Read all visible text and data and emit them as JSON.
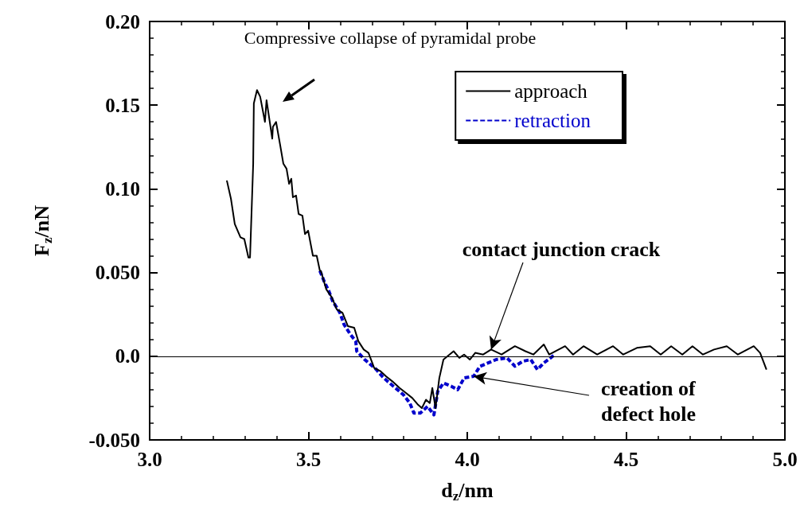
{
  "chart_data": {
    "type": "line",
    "xlabel": "d$_{z}$/nm",
    "ylabel": "F$_{z}$/nN",
    "xlim": [
      3.0,
      5.0
    ],
    "xticks": [
      {
        "value": 3.0,
        "label": "3.0"
      },
      {
        "value": 3.5,
        "label": "3.5"
      },
      {
        "value": 4.0,
        "label": "4.0"
      },
      {
        "value": 4.5,
        "label": "4.5"
      },
      {
        "value": 5.0,
        "label": "5.0"
      }
    ],
    "ylim": [
      -0.05,
      0.2
    ],
    "yticks": [
      {
        "value": -0.05,
        "label": "-0.050"
      },
      {
        "value": 0,
        "label": "0.0"
      },
      {
        "value": 0.05,
        "label": "0.050"
      },
      {
        "value": 0.1,
        "label": "0.10"
      },
      {
        "value": 0.15,
        "label": "0.15"
      },
      {
        "value": 0.2,
        "label": "0.20"
      }
    ],
    "grid": false,
    "legend": "top right",
    "marker": "none",
    "ref_lines": [
      {
        "axis": "y",
        "value": 0,
        "color": "#000000"
      }
    ],
    "annotations": [
      "Compressive collapse of pyramidal probe",
      {
        "text": "contact junction crack",
        "x": 4.075,
        "y": 0.004
      },
      {
        "text": "creation of\ndefect hole",
        "x": 4.02,
        "y": -0.012
      }
    ],
    "series": [
      {
        "name": "approach",
        "color": "#000000",
        "line_style": "solid",
        "x": [
          3.243,
          3.256,
          3.268,
          3.286,
          3.298,
          3.311,
          3.316,
          3.326,
          3.328,
          3.338,
          3.348,
          3.363,
          3.368,
          3.386,
          3.388,
          3.398,
          3.411,
          3.421,
          3.431,
          3.439,
          3.446,
          3.451,
          3.461,
          3.469,
          3.481,
          3.489,
          3.499,
          3.514,
          3.526,
          3.536,
          3.539,
          3.556,
          3.574,
          3.589,
          3.607,
          3.624,
          3.644,
          3.657,
          3.674,
          3.689,
          3.707,
          3.727,
          3.744,
          3.764,
          3.787,
          3.807,
          3.827,
          3.845,
          3.857,
          3.87,
          3.882,
          3.89,
          3.9,
          3.912,
          3.925,
          3.957,
          3.975,
          3.99,
          4.008,
          4.025,
          4.05,
          4.075,
          4.108,
          4.15,
          4.183,
          4.208,
          4.241,
          4.258,
          4.308,
          4.333,
          4.366,
          4.409,
          4.459,
          4.491,
          4.534,
          4.576,
          4.609,
          4.642,
          4.677,
          4.709,
          4.742,
          4.777,
          4.817,
          4.852,
          4.902,
          4.922,
          4.942
        ],
        "values": [
          0.105,
          0.094,
          0.079,
          0.071,
          0.07,
          0.059,
          0.059,
          0.115,
          0.151,
          0.159,
          0.155,
          0.14,
          0.153,
          0.13,
          0.137,
          0.14,
          0.126,
          0.115,
          0.112,
          0.103,
          0.106,
          0.095,
          0.096,
          0.085,
          0.084,
          0.073,
          0.075,
          0.06,
          0.06,
          0.051,
          0.051,
          0.04,
          0.035,
          0.028,
          0.026,
          0.018,
          0.017,
          0.009,
          0.004,
          0.002,
          -0.007,
          -0.009,
          -0.012,
          -0.015,
          -0.019,
          -0.022,
          -0.025,
          -0.029,
          -0.031,
          -0.026,
          -0.028,
          -0.019,
          -0.031,
          -0.013,
          -0.002,
          0.003,
          -0.001,
          0.001,
          -0.002,
          0.002,
          0.001,
          0.004,
          0.001,
          0.006,
          0.003,
          0.001,
          0.007,
          0.001,
          0.006,
          0.001,
          0.006,
          0.001,
          0.006,
          0.001,
          0.005,
          0.006,
          0.001,
          0.006,
          0.001,
          0.006,
          0.001,
          0.004,
          0.006,
          0.001,
          0.006,
          0.002,
          -0.008
        ]
      },
      {
        "name": "retraction",
        "color": "#0000cc",
        "line_style": "dashed",
        "x": [
          3.536,
          3.551,
          3.564,
          3.576,
          3.599,
          3.612,
          3.632,
          3.649,
          3.652,
          3.677,
          3.714,
          3.732,
          3.749,
          3.774,
          3.799,
          3.819,
          3.832,
          3.852,
          3.875,
          3.895,
          3.907,
          3.925,
          3.95,
          3.97,
          3.99,
          4.02,
          4.04,
          4.066,
          4.091,
          4.125,
          4.15,
          4.175,
          4.2,
          4.221,
          4.241,
          4.276
        ],
        "values": [
          0.051,
          0.044,
          0.039,
          0.033,
          0.026,
          0.019,
          0.013,
          0.009,
          0.003,
          -0.002,
          -0.008,
          -0.012,
          -0.015,
          -0.019,
          -0.023,
          -0.028,
          -0.034,
          -0.034,
          -0.03,
          -0.035,
          -0.021,
          -0.016,
          -0.018,
          -0.02,
          -0.013,
          -0.012,
          -0.006,
          -0.004,
          -0.002,
          -0.001,
          -0.006,
          -0.003,
          -0.002,
          -0.008,
          -0.004,
          0.001
        ]
      }
    ]
  }
}
